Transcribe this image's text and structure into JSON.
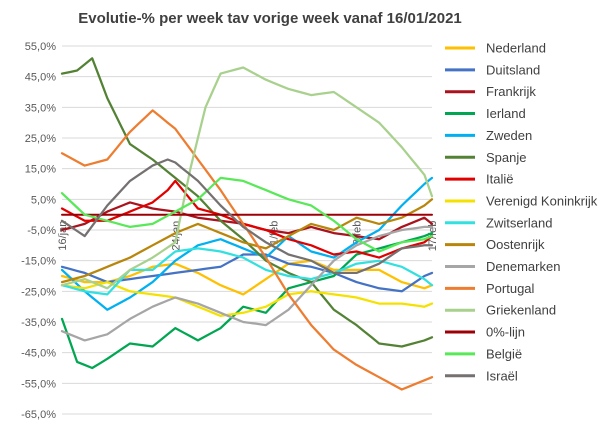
{
  "chart_data": {
    "type": "line",
    "title": "Evolutie-% per week tav vorige week vanaf 16/01/2021",
    "xlabel": "",
    "ylabel": "",
    "ylim": [
      -65,
      55
    ],
    "yticks": [
      55,
      45,
      35,
      25,
      15,
      5,
      -5,
      -15,
      -25,
      -35,
      -45,
      -55,
      -65
    ],
    "ytick_labels": [
      "55,0%",
      "45,0%",
      "35,0%",
      "25,0%",
      "15,0%",
      "5,0%",
      "-5,0%",
      "-15,0%",
      "-25,0%",
      "-35,0%",
      "-45,0%",
      "-55,0%",
      "-65,0%"
    ],
    "x": [
      0,
      1,
      2,
      3,
      4,
      5,
      6,
      7,
      8,
      9,
      10,
      11,
      12,
      13,
      14,
      15,
      16,
      17,
      18,
      19,
      20,
      21,
      22,
      23,
      24,
      25,
      26,
      27,
      28,
      29,
      30,
      31,
      32,
      33,
      34,
      35,
      36,
      37,
      38,
      39,
      40,
      41,
      42,
      43,
      44,
      45,
      46,
      47,
      48,
      49
    ],
    "xtick_labels": [
      {
        "at": 0,
        "label": "16/jan"
      },
      {
        "at": 15,
        "label": "24/jan"
      },
      {
        "at": 28,
        "label": "1/feb"
      },
      {
        "at": 39,
        "label": "8/feb"
      },
      {
        "at": 49,
        "label": "17/feb"
      }
    ],
    "grid": true,
    "legend_position": "right",
    "series": [
      {
        "name": "Nederland",
        "color": "#FFC000",
        "keys": [
          [
            0,
            -20
          ],
          [
            3,
            -22
          ],
          [
            6,
            -22
          ],
          [
            9,
            -20
          ],
          [
            12,
            -17
          ],
          [
            15,
            -16
          ],
          [
            18,
            -19
          ],
          [
            21,
            -23
          ],
          [
            24,
            -26
          ],
          [
            27,
            -21
          ],
          [
            30,
            -16
          ],
          [
            33,
            -15
          ],
          [
            36,
            -18
          ],
          [
            39,
            -18
          ],
          [
            42,
            -18
          ],
          [
            45,
            -22
          ],
          [
            48,
            -24
          ],
          [
            49,
            -23
          ]
        ]
      },
      {
        "name": "Duitsland",
        "color": "#4472C4",
        "keys": [
          [
            0,
            -17
          ],
          [
            3,
            -19
          ],
          [
            6,
            -22
          ],
          [
            9,
            -21
          ],
          [
            12,
            -20
          ],
          [
            15,
            -19
          ],
          [
            18,
            -18
          ],
          [
            21,
            -17
          ],
          [
            24,
            -13
          ],
          [
            27,
            -13
          ],
          [
            30,
            -16
          ],
          [
            33,
            -17
          ],
          [
            36,
            -19
          ],
          [
            39,
            -22
          ],
          [
            42,
            -24
          ],
          [
            45,
            -25
          ],
          [
            48,
            -20
          ],
          [
            49,
            -19
          ]
        ]
      },
      {
        "name": "Frankrijk",
        "color": "#A9131E",
        "keys": [
          [
            0,
            -5
          ],
          [
            3,
            -3
          ],
          [
            6,
            1
          ],
          [
            9,
            4
          ],
          [
            12,
            2
          ],
          [
            15,
            1
          ],
          [
            18,
            -1
          ],
          [
            21,
            -2
          ],
          [
            24,
            -3
          ],
          [
            27,
            -5
          ],
          [
            30,
            -6
          ],
          [
            33,
            -4
          ],
          [
            36,
            -6
          ],
          [
            39,
            -7
          ],
          [
            42,
            -8
          ],
          [
            45,
            -4
          ],
          [
            48,
            -1
          ],
          [
            49,
            -3
          ]
        ]
      },
      {
        "name": "Ierland",
        "color": "#00A651",
        "keys": [
          [
            0,
            -34
          ],
          [
            2,
            -48
          ],
          [
            4,
            -50
          ],
          [
            6,
            -47
          ],
          [
            9,
            -42
          ],
          [
            12,
            -43
          ],
          [
            15,
            -37
          ],
          [
            18,
            -41
          ],
          [
            21,
            -37
          ],
          [
            24,
            -30
          ],
          [
            27,
            -32
          ],
          [
            30,
            -24
          ],
          [
            33,
            -22
          ],
          [
            36,
            -20
          ],
          [
            39,
            -13
          ],
          [
            42,
            -11
          ],
          [
            45,
            -9
          ],
          [
            48,
            -7
          ],
          [
            49,
            -6
          ]
        ]
      },
      {
        "name": "Zweden",
        "color": "#00B0F0",
        "keys": [
          [
            0,
            -18
          ],
          [
            3,
            -25
          ],
          [
            6,
            -31
          ],
          [
            9,
            -27
          ],
          [
            12,
            -22
          ],
          [
            15,
            -15
          ],
          [
            18,
            -10
          ],
          [
            21,
            -8
          ],
          [
            24,
            -11
          ],
          [
            27,
            -14
          ],
          [
            30,
            -7
          ],
          [
            33,
            -12
          ],
          [
            36,
            -14
          ],
          [
            39,
            -9
          ],
          [
            42,
            -5
          ],
          [
            45,
            3
          ],
          [
            48,
            10
          ],
          [
            49,
            12
          ]
        ]
      },
      {
        "name": "Spanje",
        "color": "#548235",
        "keys": [
          [
            0,
            46
          ],
          [
            2,
            47
          ],
          [
            4,
            51
          ],
          [
            6,
            38
          ],
          [
            9,
            23
          ],
          [
            12,
            18
          ],
          [
            15,
            12
          ],
          [
            18,
            6
          ],
          [
            21,
            -2
          ],
          [
            24,
            -8
          ],
          [
            27,
            -15
          ],
          [
            30,
            -19
          ],
          [
            33,
            -22
          ],
          [
            36,
            -31
          ],
          [
            39,
            -36
          ],
          [
            42,
            -42
          ],
          [
            45,
            -43
          ],
          [
            48,
            -41
          ],
          [
            49,
            -40
          ]
        ]
      },
      {
        "name": "Italië",
        "color": "#E00000",
        "keys": [
          [
            0,
            2
          ],
          [
            3,
            -2
          ],
          [
            6,
            -2
          ],
          [
            9,
            1
          ],
          [
            12,
            4
          ],
          [
            14,
            8
          ],
          [
            15,
            11
          ],
          [
            16,
            8
          ],
          [
            18,
            2
          ],
          [
            21,
            0
          ],
          [
            24,
            -3
          ],
          [
            27,
            -5
          ],
          [
            30,
            -8
          ],
          [
            33,
            -10
          ],
          [
            36,
            -13
          ],
          [
            39,
            -12
          ],
          [
            42,
            -14
          ],
          [
            45,
            -11
          ],
          [
            48,
            -9
          ],
          [
            49,
            -7
          ]
        ]
      },
      {
        "name": "Verenigd Koninkrijk",
        "color": "#F5E100",
        "keys": [
          [
            0,
            -23
          ],
          [
            3,
            -24
          ],
          [
            6,
            -22
          ],
          [
            9,
            -25
          ],
          [
            12,
            -26
          ],
          [
            15,
            -27
          ],
          [
            18,
            -30
          ],
          [
            21,
            -33
          ],
          [
            24,
            -32
          ],
          [
            27,
            -30
          ],
          [
            30,
            -26
          ],
          [
            33,
            -25
          ],
          [
            36,
            -26
          ],
          [
            39,
            -27
          ],
          [
            42,
            -29
          ],
          [
            45,
            -29
          ],
          [
            48,
            -30
          ],
          [
            49,
            -29
          ]
        ]
      },
      {
        "name": "Zwitserland",
        "color": "#33E0E0",
        "keys": [
          [
            0,
            -23
          ],
          [
            3,
            -25
          ],
          [
            6,
            -26
          ],
          [
            9,
            -18
          ],
          [
            12,
            -18
          ],
          [
            15,
            -12
          ],
          [
            18,
            -11
          ],
          [
            21,
            -12
          ],
          [
            24,
            -14
          ],
          [
            27,
            -18
          ],
          [
            30,
            -20
          ],
          [
            33,
            -21
          ],
          [
            36,
            -19
          ],
          [
            39,
            -16
          ],
          [
            42,
            -15
          ],
          [
            45,
            -17
          ],
          [
            48,
            -21
          ],
          [
            49,
            -23
          ]
        ]
      },
      {
        "name": "Oostenrijk",
        "color": "#B8860B",
        "keys": [
          [
            0,
            -22
          ],
          [
            3,
            -20
          ],
          [
            6,
            -17
          ],
          [
            9,
            -14
          ],
          [
            12,
            -10
          ],
          [
            15,
            -6
          ],
          [
            18,
            -3
          ],
          [
            21,
            -6
          ],
          [
            24,
            -9
          ],
          [
            27,
            -11
          ],
          [
            30,
            -7
          ],
          [
            33,
            -3
          ],
          [
            36,
            -5
          ],
          [
            39,
            -1
          ],
          [
            42,
            -3
          ],
          [
            45,
            -1
          ],
          [
            48,
            3
          ],
          [
            49,
            5
          ]
        ]
      },
      {
        "name": "Denemarken",
        "color": "#A6A6A6",
        "keys": [
          [
            0,
            -38
          ],
          [
            3,
            -41
          ],
          [
            6,
            -39
          ],
          [
            9,
            -34
          ],
          [
            12,
            -30
          ],
          [
            15,
            -27
          ],
          [
            18,
            -29
          ],
          [
            21,
            -32
          ],
          [
            24,
            -35
          ],
          [
            27,
            -36
          ],
          [
            30,
            -31
          ],
          [
            33,
            -23
          ],
          [
            36,
            -15
          ],
          [
            39,
            -10
          ],
          [
            42,
            -7
          ],
          [
            45,
            -5
          ],
          [
            48,
            -4
          ],
          [
            49,
            -4
          ]
        ]
      },
      {
        "name": "Portugal",
        "color": "#ED7D31",
        "keys": [
          [
            0,
            20
          ],
          [
            3,
            16
          ],
          [
            6,
            18
          ],
          [
            9,
            27
          ],
          [
            12,
            34
          ],
          [
            15,
            28
          ],
          [
            18,
            18
          ],
          [
            21,
            8
          ],
          [
            24,
            -3
          ],
          [
            27,
            -14
          ],
          [
            30,
            -26
          ],
          [
            33,
            -36
          ],
          [
            36,
            -44
          ],
          [
            39,
            -49
          ],
          [
            42,
            -53
          ],
          [
            45,
            -57
          ],
          [
            48,
            -54
          ],
          [
            49,
            -53
          ]
        ]
      },
      {
        "name": "Griekenland",
        "color": "#A9D18E",
        "keys": [
          [
            0,
            -23
          ],
          [
            3,
            -21
          ],
          [
            6,
            -24
          ],
          [
            9,
            -18
          ],
          [
            12,
            -14
          ],
          [
            15,
            -9
          ],
          [
            17,
            15
          ],
          [
            19,
            35
          ],
          [
            21,
            46
          ],
          [
            24,
            48
          ],
          [
            27,
            44
          ],
          [
            30,
            41
          ],
          [
            33,
            39
          ],
          [
            36,
            40
          ],
          [
            39,
            35
          ],
          [
            42,
            30
          ],
          [
            45,
            22
          ],
          [
            48,
            13
          ],
          [
            49,
            6
          ]
        ]
      },
      {
        "name": "0%-lijn",
        "color": "#9C0006",
        "keys": [
          [
            0,
            0
          ],
          [
            49,
            0
          ]
        ]
      },
      {
        "name": "België",
        "color": "#58E858",
        "keys": [
          [
            0,
            7
          ],
          [
            3,
            0
          ],
          [
            6,
            -2
          ],
          [
            9,
            -4
          ],
          [
            12,
            -3
          ],
          [
            15,
            1
          ],
          [
            18,
            5
          ],
          [
            21,
            12
          ],
          [
            24,
            11
          ],
          [
            27,
            8
          ],
          [
            30,
            5
          ],
          [
            33,
            3
          ],
          [
            36,
            -2
          ],
          [
            39,
            -8
          ],
          [
            42,
            -12
          ],
          [
            45,
            -9
          ],
          [
            48,
            -8
          ],
          [
            49,
            -7
          ]
        ]
      },
      {
        "name": "Israël",
        "color": "#767171",
        "keys": [
          [
            0,
            -2
          ],
          [
            3,
            -7
          ],
          [
            6,
            3
          ],
          [
            9,
            11
          ],
          [
            12,
            16
          ],
          [
            14,
            18
          ],
          [
            15,
            17
          ],
          [
            18,
            11
          ],
          [
            21,
            3
          ],
          [
            24,
            -4
          ],
          [
            27,
            -9
          ],
          [
            30,
            -13
          ],
          [
            33,
            -15
          ],
          [
            36,
            -19
          ],
          [
            39,
            -19
          ],
          [
            42,
            -16
          ],
          [
            45,
            -11
          ],
          [
            48,
            -10
          ],
          [
            49,
            -10
          ]
        ]
      }
    ]
  }
}
